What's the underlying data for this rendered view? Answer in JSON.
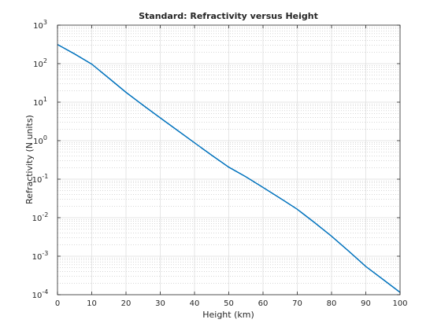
{
  "chart_data": {
    "type": "line",
    "title": "Standard: Refractivity versus Height",
    "xlabel": "Height (km)",
    "ylabel": "Refractivity (N units)",
    "xlim": [
      0,
      100
    ],
    "ylim": [
      0.0001,
      1000
    ],
    "yscale": "log",
    "grid": true,
    "minor_grid": true,
    "x_ticks": [
      "0",
      "10",
      "20",
      "30",
      "40",
      "50",
      "60",
      "70",
      "80",
      "90",
      "100"
    ],
    "y_ticks": [
      {
        "base": "10",
        "exp": "-4"
      },
      {
        "base": "10",
        "exp": "-3"
      },
      {
        "base": "10",
        "exp": "-2"
      },
      {
        "base": "10",
        "exp": "-1"
      },
      {
        "base": "10",
        "exp": "0"
      },
      {
        "base": "10",
        "exp": "1"
      },
      {
        "base": "10",
        "exp": "2"
      },
      {
        "base": "10",
        "exp": "3"
      }
    ],
    "series": [
      {
        "color": "#0072BD",
        "x": [
          0,
          5,
          10,
          15,
          20,
          25,
          30,
          35,
          40,
          45,
          50,
          55,
          60,
          65,
          70,
          75,
          80,
          85,
          90,
          95,
          100
        ],
        "y": [
          315,
          178,
          97,
          42,
          18,
          8.3,
          3.9,
          1.85,
          0.88,
          0.42,
          0.205,
          0.115,
          0.061,
          0.032,
          0.0165,
          0.0075,
          0.0033,
          0.00135,
          0.00054,
          0.00025,
          0.000115
        ]
      }
    ]
  }
}
